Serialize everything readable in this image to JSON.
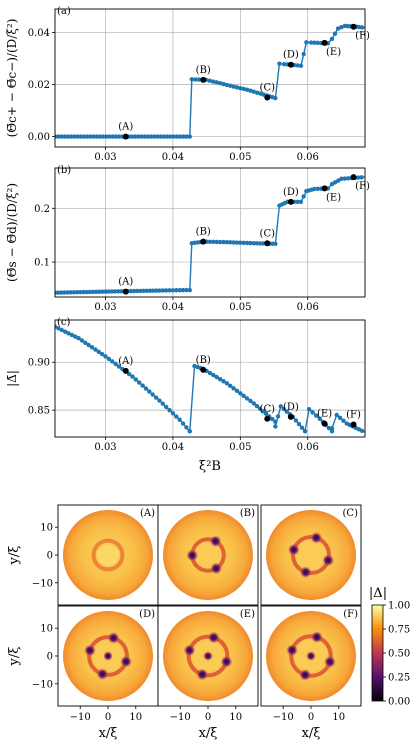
{
  "colors": {
    "series": "#1f77b4",
    "marker": "#000000"
  },
  "chart_data": [
    {
      "type": "line",
      "panel_label": "(a)",
      "ylabel": "(Θ̄c+ − Θ̄c−)/(D/ξ²)",
      "xlim": [
        0.0225,
        0.0685
      ],
      "ylim": [
        -0.004,
        0.049
      ],
      "xticks": [
        "0.03",
        "0.04",
        "0.05",
        "0.06"
      ],
      "yticks": [
        "0.00",
        "0.02",
        "0.04"
      ],
      "grid": true,
      "segments": [
        {
          "x": [
            0.0225,
            0.0425
          ],
          "y": [
            0.0,
            0.0
          ]
        },
        {
          "x": [
            0.0428,
            0.0449,
            0.047,
            0.049,
            0.051,
            0.053,
            0.0552
          ],
          "y": [
            0.022,
            0.0218,
            0.0205,
            0.0192,
            0.018,
            0.0165,
            0.0148
          ]
        },
        {
          "x": [
            0.0558,
            0.0565,
            0.0575,
            0.059
          ],
          "y": [
            0.028,
            0.0278,
            0.0276,
            0.0272
          ]
        },
        {
          "x": [
            0.0598,
            0.0605,
            0.0615,
            0.063
          ],
          "y": [
            0.0362,
            0.0361,
            0.036,
            0.0358
          ]
        },
        {
          "x": [
            0.0636,
            0.0645,
            0.0655,
            0.0672,
            0.0685
          ],
          "y": [
            0.0375,
            0.0415,
            0.0425,
            0.0422,
            0.0418
          ]
        }
      ],
      "markers": [
        {
          "label": "(A)",
          "x": 0.033,
          "y": 0.0
        },
        {
          "label": "(B)",
          "x": 0.0445,
          "y": 0.0218
        },
        {
          "label": "(C)",
          "x": 0.054,
          "y": 0.015
        },
        {
          "label": "(D)",
          "x": 0.0575,
          "y": 0.0276
        },
        {
          "label": "(E)",
          "x": 0.0625,
          "y": 0.036
        },
        {
          "label": "(F)",
          "x": 0.0668,
          "y": 0.0422
        }
      ]
    },
    {
      "type": "line",
      "panel_label": "(b)",
      "ylabel": "(Θ̄s − Θ̄d)/(D/ξ²)",
      "xlim": [
        0.0225,
        0.0685
      ],
      "ylim": [
        0.035,
        0.275
      ],
      "xticks": [
        "0.03",
        "0.04",
        "0.05",
        "0.06"
      ],
      "yticks": [
        "0.1",
        "0.2"
      ],
      "grid": true,
      "segments": [
        {
          "x": [
            0.0225,
            0.03,
            0.038,
            0.0425
          ],
          "y": [
            0.043,
            0.045,
            0.047,
            0.048
          ]
        },
        {
          "x": [
            0.0428,
            0.0445,
            0.048,
            0.052,
            0.0552
          ],
          "y": [
            0.135,
            0.138,
            0.137,
            0.135,
            0.134
          ]
        },
        {
          "x": [
            0.0558,
            0.057,
            0.059
          ],
          "y": [
            0.205,
            0.212,
            0.212
          ]
        },
        {
          "x": [
            0.0598,
            0.061,
            0.063
          ],
          "y": [
            0.232,
            0.236,
            0.237
          ]
        },
        {
          "x": [
            0.0636,
            0.065,
            0.0685
          ],
          "y": [
            0.245,
            0.255,
            0.258
          ]
        }
      ],
      "markers": [
        {
          "label": "(A)",
          "x": 0.033,
          "y": 0.045
        },
        {
          "label": "(B)",
          "x": 0.0445,
          "y": 0.138
        },
        {
          "label": "(C)",
          "x": 0.054,
          "y": 0.135
        },
        {
          "label": "(D)",
          "x": 0.0575,
          "y": 0.212
        },
        {
          "label": "(E)",
          "x": 0.0625,
          "y": 0.237
        },
        {
          "label": "(F)",
          "x": 0.0668,
          "y": 0.258
        }
      ]
    },
    {
      "type": "line",
      "panel_label": "(c)",
      "ylabel": "|Δ̄|",
      "xlabel": "ξ²B",
      "xlim": [
        0.0225,
        0.0685
      ],
      "ylim": [
        0.822,
        0.944
      ],
      "xticks": [
        "0.03",
        "0.04",
        "0.05",
        "0.06"
      ],
      "yticks": [
        "0.85",
        "0.90"
      ],
      "grid": true,
      "segments": [
        {
          "x": [
            0.0225,
            0.026,
            0.03,
            0.034,
            0.038,
            0.041,
            0.0425
          ],
          "y": [
            0.937,
            0.925,
            0.906,
            0.885,
            0.86,
            0.84,
            0.828
          ]
        },
        {
          "x": [
            0.0425,
            0.0432,
            0.0445,
            0.048,
            0.052,
            0.0552
          ],
          "y": [
            0.828,
            0.896,
            0.893,
            0.878,
            0.857,
            0.838
          ]
        },
        {
          "x": [
            0.0552,
            0.056,
            0.0578,
            0.0596
          ],
          "y": [
            0.833,
            0.854,
            0.843,
            0.828
          ]
        },
        {
          "x": [
            0.0596,
            0.0602,
            0.0618,
            0.0636
          ],
          "y": [
            0.828,
            0.851,
            0.841,
            0.828
          ]
        },
        {
          "x": [
            0.0636,
            0.0643,
            0.0658,
            0.0685
          ],
          "y": [
            0.831,
            0.845,
            0.836,
            0.827
          ]
        }
      ],
      "markers": [
        {
          "label": "(A)",
          "x": 0.033,
          "y": 0.891
        },
        {
          "label": "(B)",
          "x": 0.0445,
          "y": 0.892
        },
        {
          "label": "(C)",
          "x": 0.054,
          "y": 0.841
        },
        {
          "label": "(D)",
          "x": 0.0575,
          "y": 0.843
        },
        {
          "label": "(E)",
          "x": 0.0625,
          "y": 0.836
        },
        {
          "label": "(F)",
          "x": 0.0668,
          "y": 0.835
        }
      ]
    },
    {
      "type": "heatmap",
      "colorbar_label": "|Δ|",
      "colorbar_ticks": [
        "0.00",
        "0.25",
        "0.50",
        "0.75",
        "1.00"
      ],
      "xlabel": "x/ξ",
      "ylabel": "y/ξ",
      "xticks": [
        "−10",
        "0",
        "10"
      ],
      "yticks": [
        "10",
        "0",
        "−10"
      ],
      "tick_values": [
        -10,
        0,
        10
      ],
      "range": [
        -18,
        18
      ],
      "maps": [
        {
          "label": "(A)",
          "vortices": 0,
          "ring": 0.32
        },
        {
          "label": "(B)",
          "vortices": 3,
          "ring": 0.35
        },
        {
          "label": "(C)",
          "vortices": 4,
          "ring": 0.4
        },
        {
          "label": "(D)",
          "vortices": 5,
          "ring": 0.42
        },
        {
          "label": "(E)",
          "vortices": 5,
          "ring": 0.43
        },
        {
          "label": "(F)",
          "vortices": 5,
          "ring": 0.44
        }
      ]
    }
  ]
}
